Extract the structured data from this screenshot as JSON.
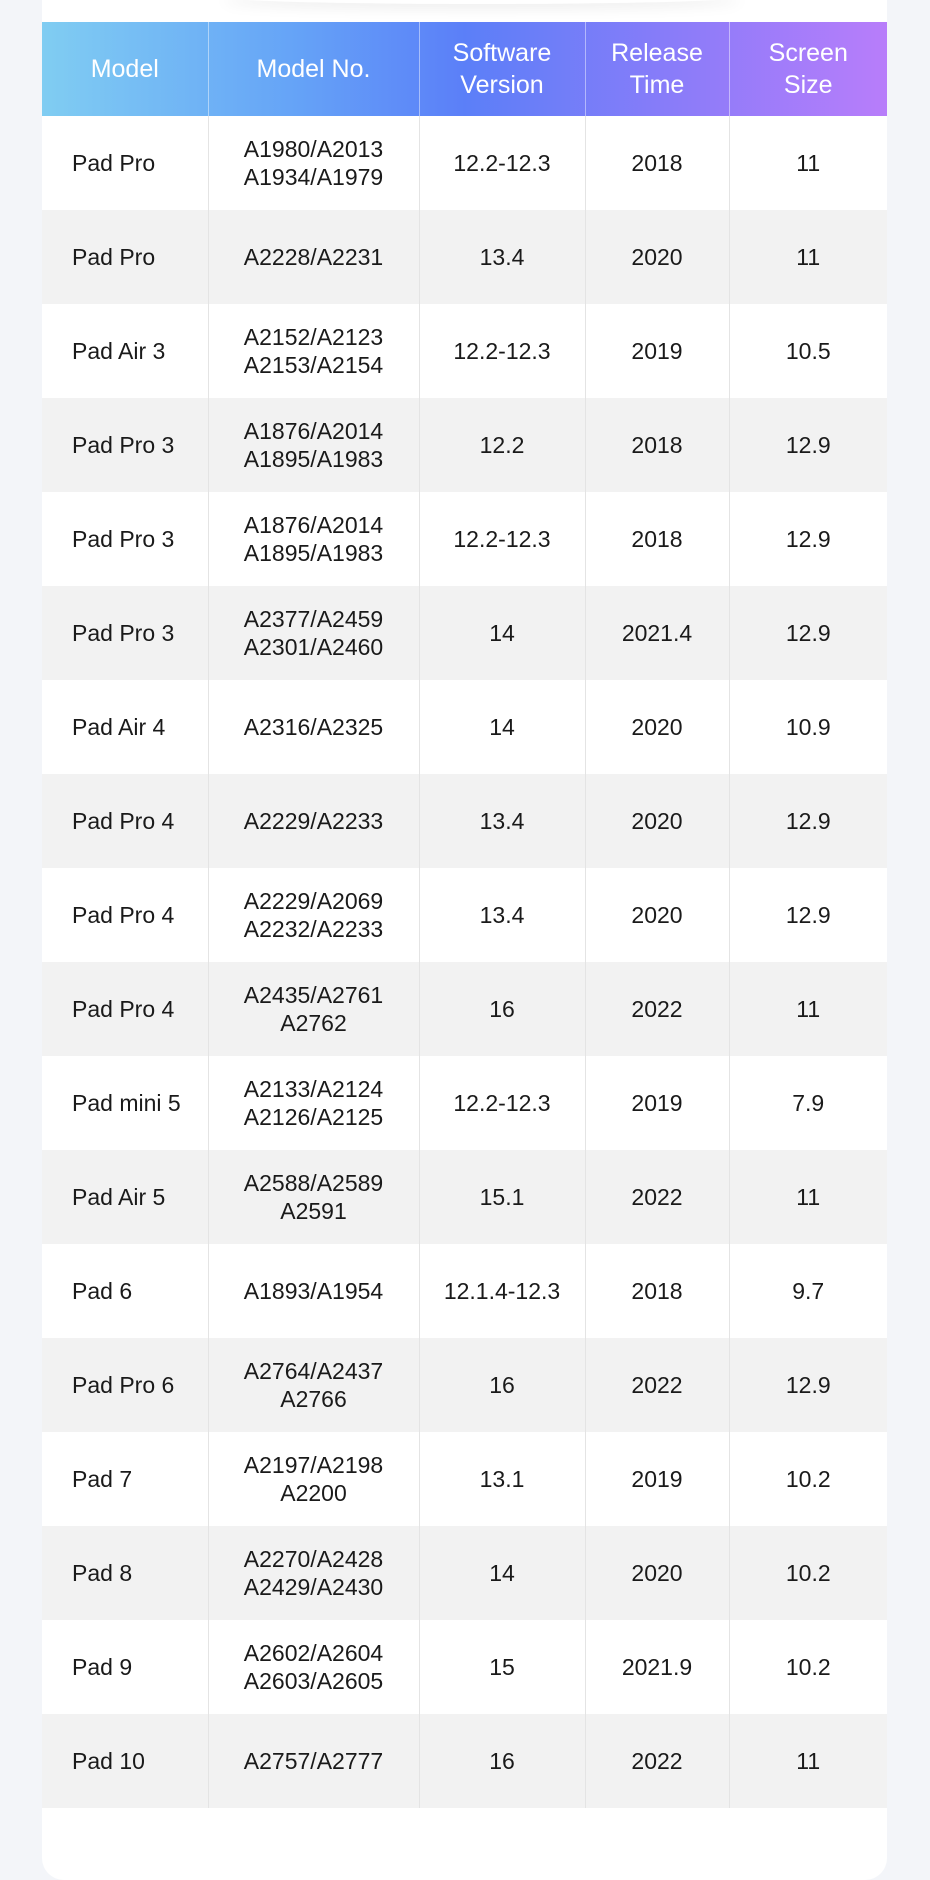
{
  "table": {
    "headers": [
      "Model",
      "Model No.",
      "Software Version",
      "Release Time",
      "Screen Size"
    ],
    "header_lines": [
      [
        "Model"
      ],
      [
        "Model No."
      ],
      [
        "Software",
        "Version"
      ],
      [
        "Release",
        "Time"
      ],
      [
        "Screen",
        "Size"
      ]
    ],
    "rows": [
      {
        "model": "Pad Pro",
        "model_no": [
          "A1980/A2013",
          "A1934/A1979"
        ],
        "software": "12.2-12.3",
        "release": "2018",
        "screen": "11"
      },
      {
        "model": "Pad Pro",
        "model_no": [
          "A2228/A2231"
        ],
        "software": "13.4",
        "release": "2020",
        "screen": "11"
      },
      {
        "model": "Pad Air 3",
        "model_no": [
          "A2152/A2123",
          "A2153/A2154"
        ],
        "software": "12.2-12.3",
        "release": "2019",
        "screen": "10.5"
      },
      {
        "model": "Pad Pro 3",
        "model_no": [
          "A1876/A2014",
          "A1895/A1983"
        ],
        "software": "12.2",
        "release": "2018",
        "screen": "12.9"
      },
      {
        "model": "Pad Pro 3",
        "model_no": [
          "A1876/A2014",
          "A1895/A1983"
        ],
        "software": "12.2-12.3",
        "release": "2018",
        "screen": "12.9"
      },
      {
        "model": "Pad Pro 3",
        "model_no": [
          "A2377/A2459",
          "A2301/A2460"
        ],
        "software": "14",
        "release": "2021.4",
        "screen": "12.9"
      },
      {
        "model": "Pad Air 4",
        "model_no": [
          "A2316/A2325"
        ],
        "software": "14",
        "release": "2020",
        "screen": "10.9"
      },
      {
        "model": "Pad Pro 4",
        "model_no": [
          "A2229/A2233"
        ],
        "software": "13.4",
        "release": "2020",
        "screen": "12.9"
      },
      {
        "model": "Pad Pro 4",
        "model_no": [
          "A2229/A2069",
          "A2232/A2233"
        ],
        "software": "13.4",
        "release": "2020",
        "screen": "12.9"
      },
      {
        "model": "Pad Pro 4",
        "model_no": [
          "A2435/A2761",
          "A2762"
        ],
        "software": "16",
        "release": "2022",
        "screen": "11"
      },
      {
        "model": "Pad mini 5",
        "model_no": [
          "A2133/A2124",
          "A2126/A2125"
        ],
        "software": "12.2-12.3",
        "release": "2019",
        "screen": "7.9"
      },
      {
        "model": "Pad Air 5",
        "model_no": [
          "A2588/A2589",
          "A2591"
        ],
        "software": "15.1",
        "release": "2022",
        "screen": "11"
      },
      {
        "model": "Pad 6",
        "model_no": [
          "A1893/A1954"
        ],
        "software": "12.1.4-12.3",
        "release": "2018",
        "screen": "9.7"
      },
      {
        "model": "Pad Pro 6",
        "model_no": [
          "A2764/A2437",
          "A2766"
        ],
        "software": "16",
        "release": "2022",
        "screen": "12.9"
      },
      {
        "model": "Pad 7",
        "model_no": [
          "A2197/A2198",
          "A2200"
        ],
        "software": "13.1",
        "release": "2019",
        "screen": "10.2"
      },
      {
        "model": "Pad 8",
        "model_no": [
          "A2270/A2428",
          "A2429/A2430"
        ],
        "software": "14",
        "release": "2020",
        "screen": "10.2"
      },
      {
        "model": "Pad 9",
        "model_no": [
          "A2602/A2604",
          "A2603/A2605"
        ],
        "software": "15",
        "release": "2021.9",
        "screen": "10.2"
      },
      {
        "model": "Pad 10",
        "model_no": [
          "A2757/A2777"
        ],
        "software": "16",
        "release": "2022",
        "screen": "11"
      }
    ]
  }
}
